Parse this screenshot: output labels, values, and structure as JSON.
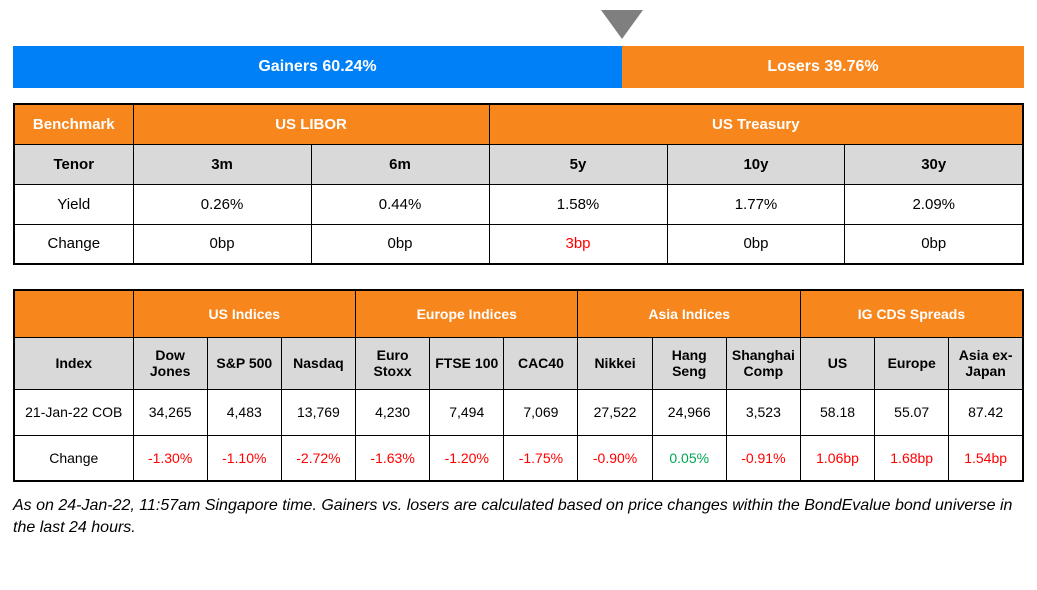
{
  "colors": {
    "gainers_blue": "#0080F7",
    "header_orange": "#F7861D",
    "subheader_gray": "#D9D9D9",
    "negative_red": "#FF0000",
    "positive_green": "#00A651",
    "marker_gray": "#7F7F7F"
  },
  "gainers_losers": {
    "gainers_label": "Gainers 60.24%",
    "losers_label": "Losers 39.76%",
    "gainers_pct": 60.24,
    "losers_pct": 39.76
  },
  "benchmark_table": {
    "corner_label": "Benchmark",
    "tenor_label": "Tenor",
    "yield_label": "Yield",
    "change_label": "Change",
    "groups": [
      {
        "label": "US LIBOR"
      },
      {
        "label": "US Treasury"
      }
    ],
    "columns": [
      {
        "tenor": "3m",
        "yield": "0.26%",
        "change": "0bp",
        "change_color": "neutral"
      },
      {
        "tenor": "6m",
        "yield": "0.44%",
        "change": "0bp",
        "change_color": "neutral"
      },
      {
        "tenor": "5y",
        "yield": "1.58%",
        "change": "3bp",
        "change_color": "red"
      },
      {
        "tenor": "10y",
        "yield": "1.77%",
        "change": "0bp",
        "change_color": "neutral"
      },
      {
        "tenor": "30y",
        "yield": "2.09%",
        "change": "0bp",
        "change_color": "neutral"
      }
    ]
  },
  "indices_table": {
    "corner_label": "",
    "index_label": "Index",
    "row_label": "21-Jan-22 COB",
    "change_label": "Change",
    "groups": [
      {
        "label": "US Indices"
      },
      {
        "label": "Europe Indices"
      },
      {
        "label": "Asia Indices"
      },
      {
        "label": "IG CDS Spreads"
      }
    ],
    "columns": [
      {
        "name": "Dow Jones",
        "value": "34,265",
        "change": "-1.30%",
        "change_color": "red"
      },
      {
        "name": "S&P 500",
        "value": "4,483",
        "change": "-1.10%",
        "change_color": "red"
      },
      {
        "name": "Nasdaq",
        "value": "13,769",
        "change": "-2.72%",
        "change_color": "red"
      },
      {
        "name": "Euro Stoxx",
        "value": "4,230",
        "change": "-1.63%",
        "change_color": "red"
      },
      {
        "name": "FTSE 100",
        "value": "7,494",
        "change": "-1.20%",
        "change_color": "red"
      },
      {
        "name": "CAC40",
        "value": "7,069",
        "change": "-1.75%",
        "change_color": "red"
      },
      {
        "name": "Nikkei",
        "value": "27,522",
        "change": "-0.90%",
        "change_color": "red"
      },
      {
        "name": "Hang Seng",
        "value": "24,966",
        "change": "0.05%",
        "change_color": "green"
      },
      {
        "name": "Shanghai Comp",
        "value": "3,523",
        "change": "-0.91%",
        "change_color": "red"
      },
      {
        "name": "US",
        "value": "58.18",
        "change": "1.06bp",
        "change_color": "red"
      },
      {
        "name": "Europe",
        "value": "55.07",
        "change": "1.68bp",
        "change_color": "red"
      },
      {
        "name": "Asia ex-Japan",
        "value": "87.42",
        "change": "1.54bp",
        "change_color": "red"
      }
    ]
  },
  "footnote": "As on 24-Jan-22, 11:57am Singapore time. Gainers vs. losers are calculated based on price changes within the BondEvalue bond universe in the last 24 hours.",
  "chart_data": [
    {
      "type": "bar",
      "title": "Gainers vs Losers (% of BondEvalue bond universe, last 24 hours)",
      "categories": [
        "Gainers",
        "Losers"
      ],
      "values": [
        60.24,
        39.76
      ],
      "unit": "%",
      "layout": "horizontal-stacked-100pct",
      "legend_position": "inside",
      "colors": [
        "#0080F7",
        "#F7861D"
      ]
    },
    {
      "type": "table",
      "title": "Benchmark",
      "columns": [
        "Tenor",
        "US LIBOR 3m",
        "US LIBOR 6m",
        "US Treasury 5y",
        "US Treasury 10y",
        "US Treasury 30y"
      ],
      "rows": [
        [
          "Yield",
          "0.26%",
          "0.44%",
          "1.58%",
          "1.77%",
          "2.09%"
        ],
        [
          "Change",
          "0bp",
          "0bp",
          "3bp",
          "0bp",
          "0bp"
        ]
      ]
    },
    {
      "type": "table",
      "title": "Indices and IG CDS Spreads",
      "columns": [
        "Index",
        "Dow Jones",
        "S&P 500",
        "Nasdaq",
        "Euro Stoxx",
        "FTSE 100",
        "CAC40",
        "Nikkei",
        "Hang Seng",
        "Shanghai Comp",
        "US",
        "Europe",
        "Asia ex-Japan"
      ],
      "rows": [
        [
          "21-Jan-22 COB",
          "34,265",
          "4,483",
          "13,769",
          "4,230",
          "7,494",
          "7,069",
          "27,522",
          "24,966",
          "3,523",
          "58.18",
          "55.07",
          "87.42"
        ],
        [
          "Change",
          "-1.30%",
          "-1.10%",
          "-2.72%",
          "-1.63%",
          "-1.20%",
          "-1.75%",
          "-0.90%",
          "0.05%",
          "-0.91%",
          "1.06bp",
          "1.68bp",
          "1.54bp"
        ]
      ]
    }
  ]
}
